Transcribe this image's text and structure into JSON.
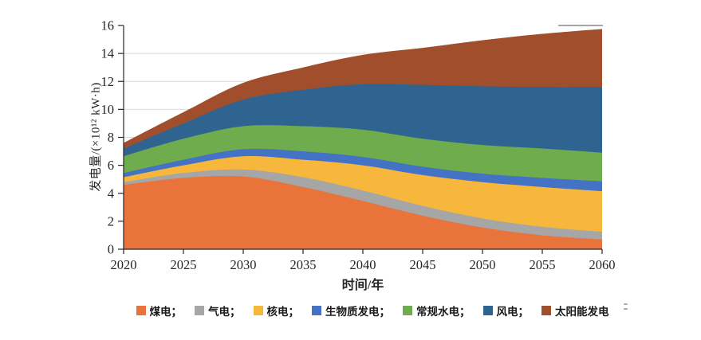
{
  "figure": {
    "background": "#FFFFFF"
  },
  "chart_data": {
    "type": "area",
    "stacked": true,
    "title": "",
    "xlabel": "时间/年",
    "ylabel": "发电量/(×10¹² kW·h)",
    "x": [
      2020,
      2025,
      2030,
      2035,
      2040,
      2045,
      2050,
      2055,
      2060
    ],
    "x_ticks": [
      "2020",
      "2025",
      "2030",
      "2035",
      "2040",
      "2045",
      "2050",
      "2055",
      "2060"
    ],
    "y_ticks": [
      "0",
      "2",
      "4",
      "6",
      "8",
      "10",
      "12",
      "14",
      "16"
    ],
    "xlim": [
      2020,
      2060
    ],
    "ylim": [
      0,
      16
    ],
    "grid": true,
    "gridline_color": "#D9D9D9",
    "axis_color": "#262626",
    "tick_label_color": "#262626",
    "legend_position": "bottom",
    "series": [
      {
        "key": "coal",
        "name": "煤电",
        "legend_label": "煤电；",
        "color": "#E8743B",
        "values": [
          4.6,
          5.1,
          5.2,
          4.45,
          3.45,
          2.4,
          1.55,
          1.0,
          0.7
        ]
      },
      {
        "key": "gas",
        "name": "气电",
        "legend_label": "气电；",
        "color": "#A6A6A6",
        "values": [
          0.2,
          0.35,
          0.5,
          0.7,
          0.75,
          0.7,
          0.65,
          0.6,
          0.55
        ]
      },
      {
        "key": "nuclear",
        "name": "核电",
        "legend_label": "核电；",
        "color": "#F6B73C",
        "values": [
          0.35,
          0.55,
          0.95,
          1.25,
          1.8,
          2.2,
          2.6,
          2.85,
          2.9
        ]
      },
      {
        "key": "biomass",
        "name": "生物质发电",
        "legend_label": "生物质发电；",
        "color": "#4472C4",
        "values": [
          0.3,
          0.4,
          0.5,
          0.6,
          0.6,
          0.6,
          0.6,
          0.65,
          0.7
        ]
      },
      {
        "key": "hydro",
        "name": "常规水电",
        "legend_label": "常规水电；",
        "color": "#6FAC4E",
        "values": [
          1.2,
          1.5,
          1.65,
          1.8,
          1.95,
          2.0,
          2.05,
          2.1,
          2.05
        ]
      },
      {
        "key": "wind",
        "name": "风电",
        "legend_label": "风电；",
        "color": "#2F6490",
        "values": [
          0.55,
          1.1,
          1.9,
          2.6,
          3.25,
          3.85,
          4.2,
          4.4,
          4.7
        ]
      },
      {
        "key": "solar",
        "name": "太阳能发电",
        "legend_label": "太阳能发电",
        "color": "#A04E2B",
        "values": [
          0.4,
          0.8,
          1.2,
          1.6,
          2.1,
          2.65,
          3.3,
          3.8,
          4.15
        ]
      }
    ]
  }
}
